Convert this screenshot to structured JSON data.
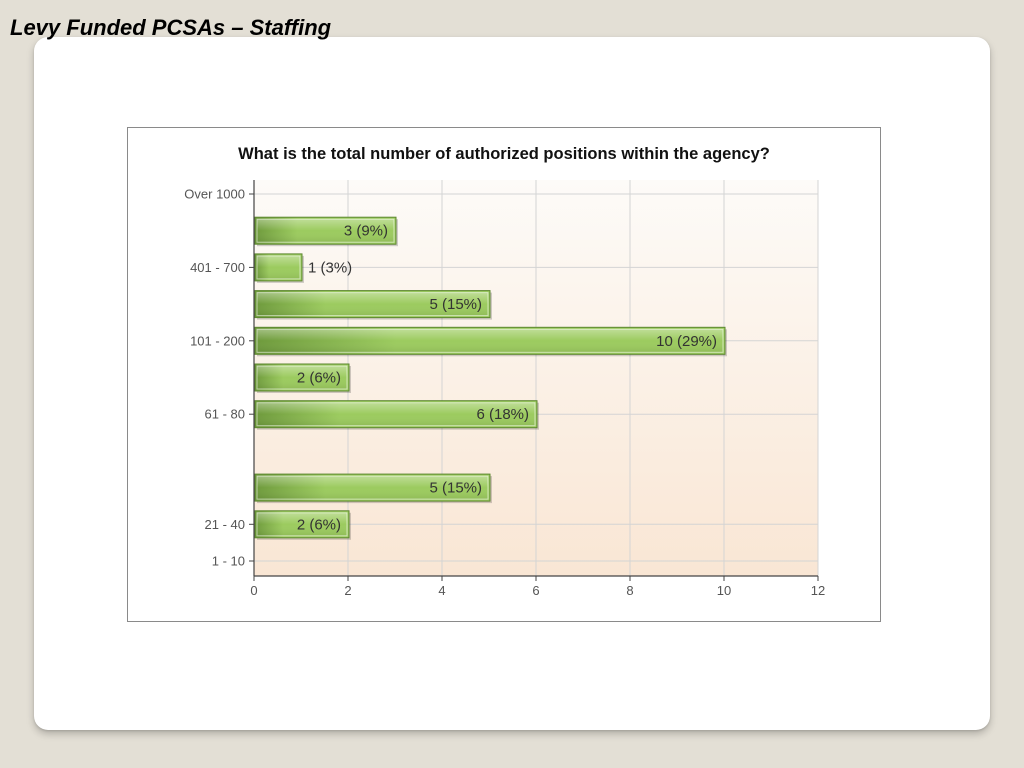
{
  "slide": {
    "title": "Levy Funded PCSAs – Staffing"
  },
  "colors": {
    "bar_dark": "#6e9a3c",
    "bar_light": "#9ccb5f",
    "bar_border": "#5d8730",
    "plot_top": "#fdfbf8",
    "plot_bottom": "#f9e6d4",
    "grid": "#d4d4d4",
    "axis": "#444444"
  },
  "chart_data": {
    "type": "bar",
    "orientation": "horizontal",
    "title": "What is the total number of authorized positions within the agency?",
    "xlabel": "",
    "ylabel": "",
    "xlim": [
      0,
      12
    ],
    "x_ticks": [
      0,
      2,
      4,
      6,
      8,
      10,
      12
    ],
    "grid": true,
    "y_tick_labels": [
      "Over 1000",
      "401 - 700",
      "101 - 200",
      "61 - 80",
      "21 - 40",
      "1 - 10"
    ],
    "bars": [
      {
        "value": 3,
        "label": "3 (9%)"
      },
      {
        "value": 1,
        "label": "1 (3%)"
      },
      {
        "value": 5,
        "label": "5 (15%)"
      },
      {
        "value": 10,
        "label": "10 (29%)"
      },
      {
        "value": 2,
        "label": "2 (6%)"
      },
      {
        "value": 6,
        "label": "6 (18%)"
      },
      {
        "value": 5,
        "label": "5 (15%)"
      },
      {
        "value": 2,
        "label": "2 (6%)"
      }
    ]
  }
}
